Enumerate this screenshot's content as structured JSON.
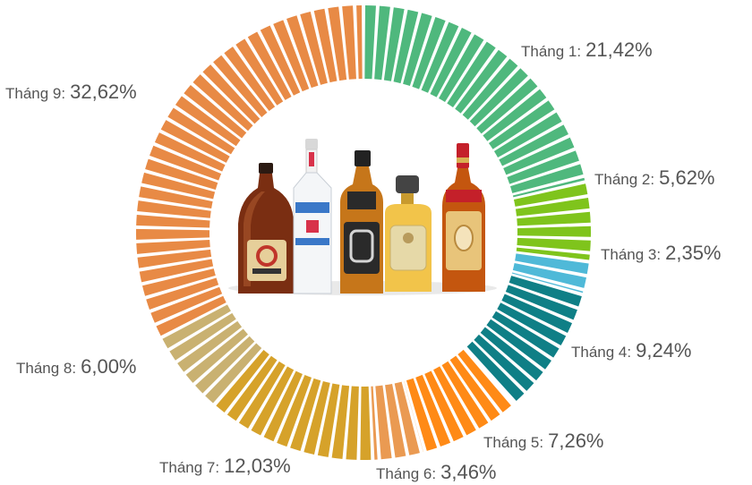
{
  "chart_data": {
    "type": "pie",
    "style": "donut",
    "title": "",
    "series": [
      {
        "name": "Tháng 1",
        "label": "Tháng 1:",
        "value_text": "21,42%",
        "value": 21.42,
        "color": "#4fb87d"
      },
      {
        "name": "Tháng 2",
        "label": "Tháng 2:",
        "value_text": "5,62%",
        "value": 5.62,
        "color": "#7fc41c"
      },
      {
        "name": "Tháng 3",
        "label": "Tháng 3:",
        "value_text": "2,35%",
        "value": 2.35,
        "color": "#4fb9d8"
      },
      {
        "name": "Tháng 4",
        "label": "Tháng 4:",
        "value_text": "9,24%",
        "value": 9.24,
        "color": "#0f7f86"
      },
      {
        "name": "Tháng 5",
        "label": "Tháng 5:",
        "value_text": "7,26%",
        "value": 7.26,
        "color": "#ff8a16"
      },
      {
        "name": "Tháng 6",
        "label": "Tháng 6:",
        "value_text": "3,46%",
        "value": 3.46,
        "color": "#ea9a52"
      },
      {
        "name": "Tháng 7",
        "label": "Tháng 7:",
        "value_text": "12,03%",
        "value": 12.03,
        "color": "#d6a22a"
      },
      {
        "name": "Tháng 8",
        "label": "Tháng 8:",
        "value_text": "6,00%",
        "value": 6.0,
        "color": "#c9b171"
      },
      {
        "name": "Tháng 9",
        "label": "Tháng 9:",
        "value_text": "32,62%",
        "value": 32.62,
        "color": "#e88a45"
      }
    ]
  },
  "center_image": {
    "icon": "liquor-bottles-illustration",
    "bottles": [
      "cognac-bottle",
      "vodka-bottle",
      "whiskey-bottle",
      "tequila-bottle",
      "brandy-bottle"
    ]
  }
}
